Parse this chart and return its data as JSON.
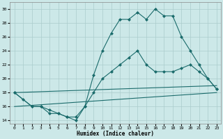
{
  "xlabel": "Humidex (Indice chaleur)",
  "xlim": [
    -0.5,
    23.5
  ],
  "ylim": [
    13.5,
    31
  ],
  "xticks": [
    0,
    1,
    2,
    3,
    4,
    5,
    6,
    7,
    8,
    9,
    10,
    11,
    12,
    13,
    14,
    15,
    16,
    17,
    18,
    19,
    20,
    21,
    22,
    23
  ],
  "yticks": [
    14,
    16,
    18,
    20,
    22,
    24,
    26,
    28,
    30
  ],
  "background_color": "#cce8e8",
  "grid_color": "#aacccc",
  "line_color": "#1a6b6b",
  "line1_x": [
    0,
    1,
    2,
    3,
    4,
    5,
    6,
    7,
    8,
    9,
    10,
    11,
    12,
    13,
    14,
    15,
    16,
    17,
    18,
    19,
    20,
    21,
    22,
    23
  ],
  "line1_y": [
    18,
    17,
    16,
    16,
    15.5,
    15,
    14.5,
    14,
    16,
    20.5,
    24,
    26.5,
    28.5,
    28.5,
    29.5,
    28.5,
    30,
    29,
    29,
    26,
    24,
    22,
    20,
    18.5
  ],
  "line2_x": [
    0,
    2,
    3,
    4,
    5,
    6,
    7,
    8,
    9,
    10,
    11,
    12,
    13,
    14,
    15,
    16,
    17,
    18,
    19,
    20,
    21,
    22,
    23
  ],
  "line2_y": [
    18,
    16,
    16,
    15,
    15,
    14.5,
    14.5,
    16,
    18,
    20,
    21,
    22,
    23,
    24,
    22,
    21,
    21,
    21,
    21.5,
    22,
    21,
    20,
    18.5
  ],
  "line3_x": [
    0,
    23
  ],
  "line3_y": [
    18,
    19
  ],
  "line4_x": [
    0,
    23
  ],
  "line4_y": [
    16,
    18
  ]
}
